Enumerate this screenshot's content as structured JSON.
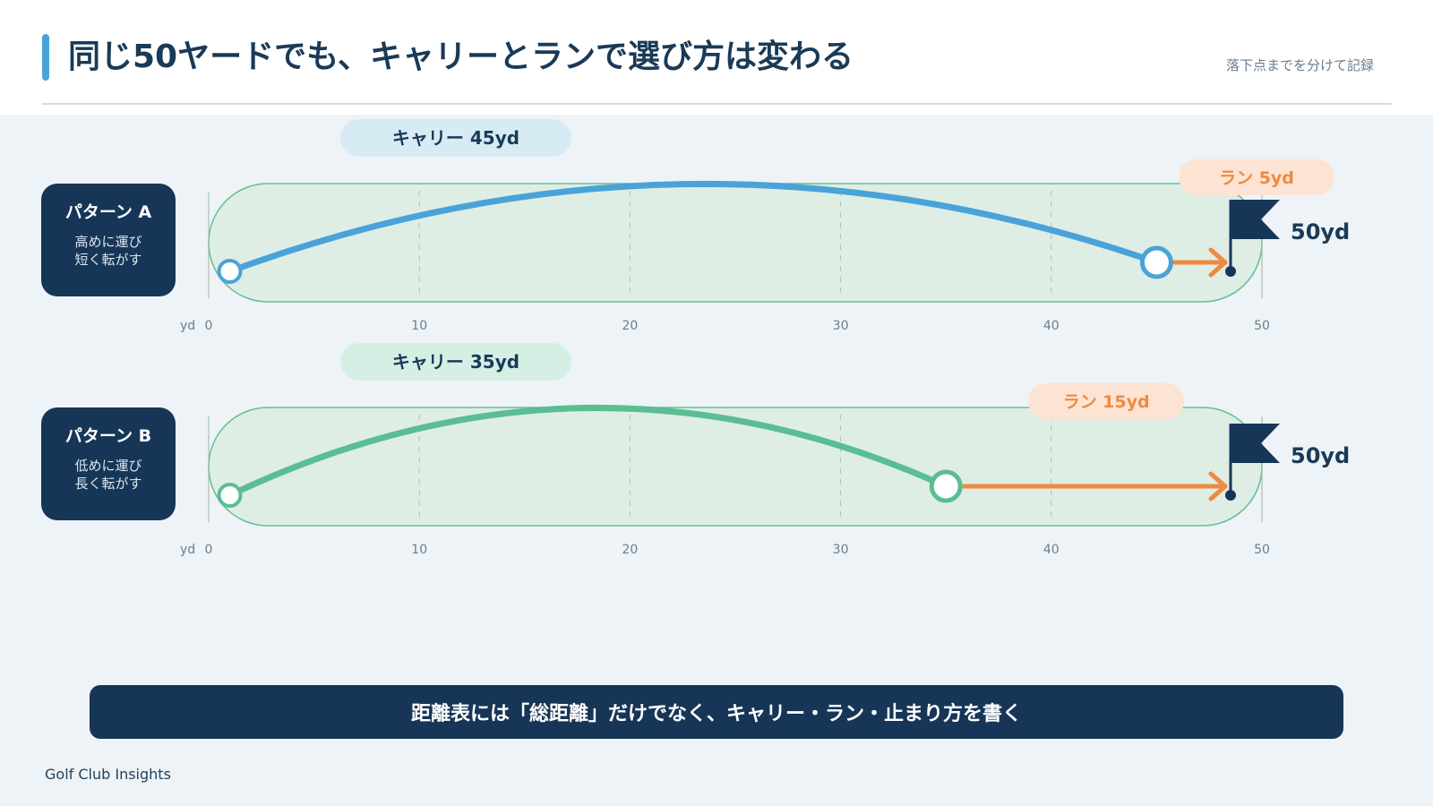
{
  "header": {
    "title": "同じ50ヤードでも、キャリーとランで選び方は変わる",
    "subtitle": "落下点までを分けて記録"
  },
  "patterns": [
    {
      "id": "A",
      "name": "パターン A",
      "desc_line1": "高めに運び",
      "desc_line2": "短く転がす",
      "carry_label": "キャリー 45yd",
      "run_label": "ラン 5yd",
      "carry_yd": 45,
      "run_yd": 5,
      "total_label": "50yd",
      "color": "#4aa3d8",
      "carry_bg": "#d7ebf5"
    },
    {
      "id": "B",
      "name": "パターン B",
      "desc_line1": "低めに運び",
      "desc_line2": "長く転がす",
      "carry_label": "キャリー 35yd",
      "run_label": "ラン 15yd",
      "carry_yd": 35,
      "run_yd": 15,
      "total_label": "50yd",
      "color": "#5bbd92",
      "carry_bg": "#d6efe5"
    }
  ],
  "axis": {
    "unit": "yd",
    "ticks": [
      0,
      10,
      20,
      30,
      40,
      50
    ],
    "min": 0,
    "max": 50
  },
  "colors": {
    "run_arrow": "#ef8a3e",
    "run_badge_bg": "#fce3d3",
    "flag": "#173657",
    "lane_fill": "#deeee5",
    "lane_stroke": "#66bf94"
  },
  "banner": {
    "text": "距離表には「総距離」だけでなく、キャリー・ラン・止まり方を書く"
  },
  "footer": {
    "brand": "Golf Club Insights"
  }
}
